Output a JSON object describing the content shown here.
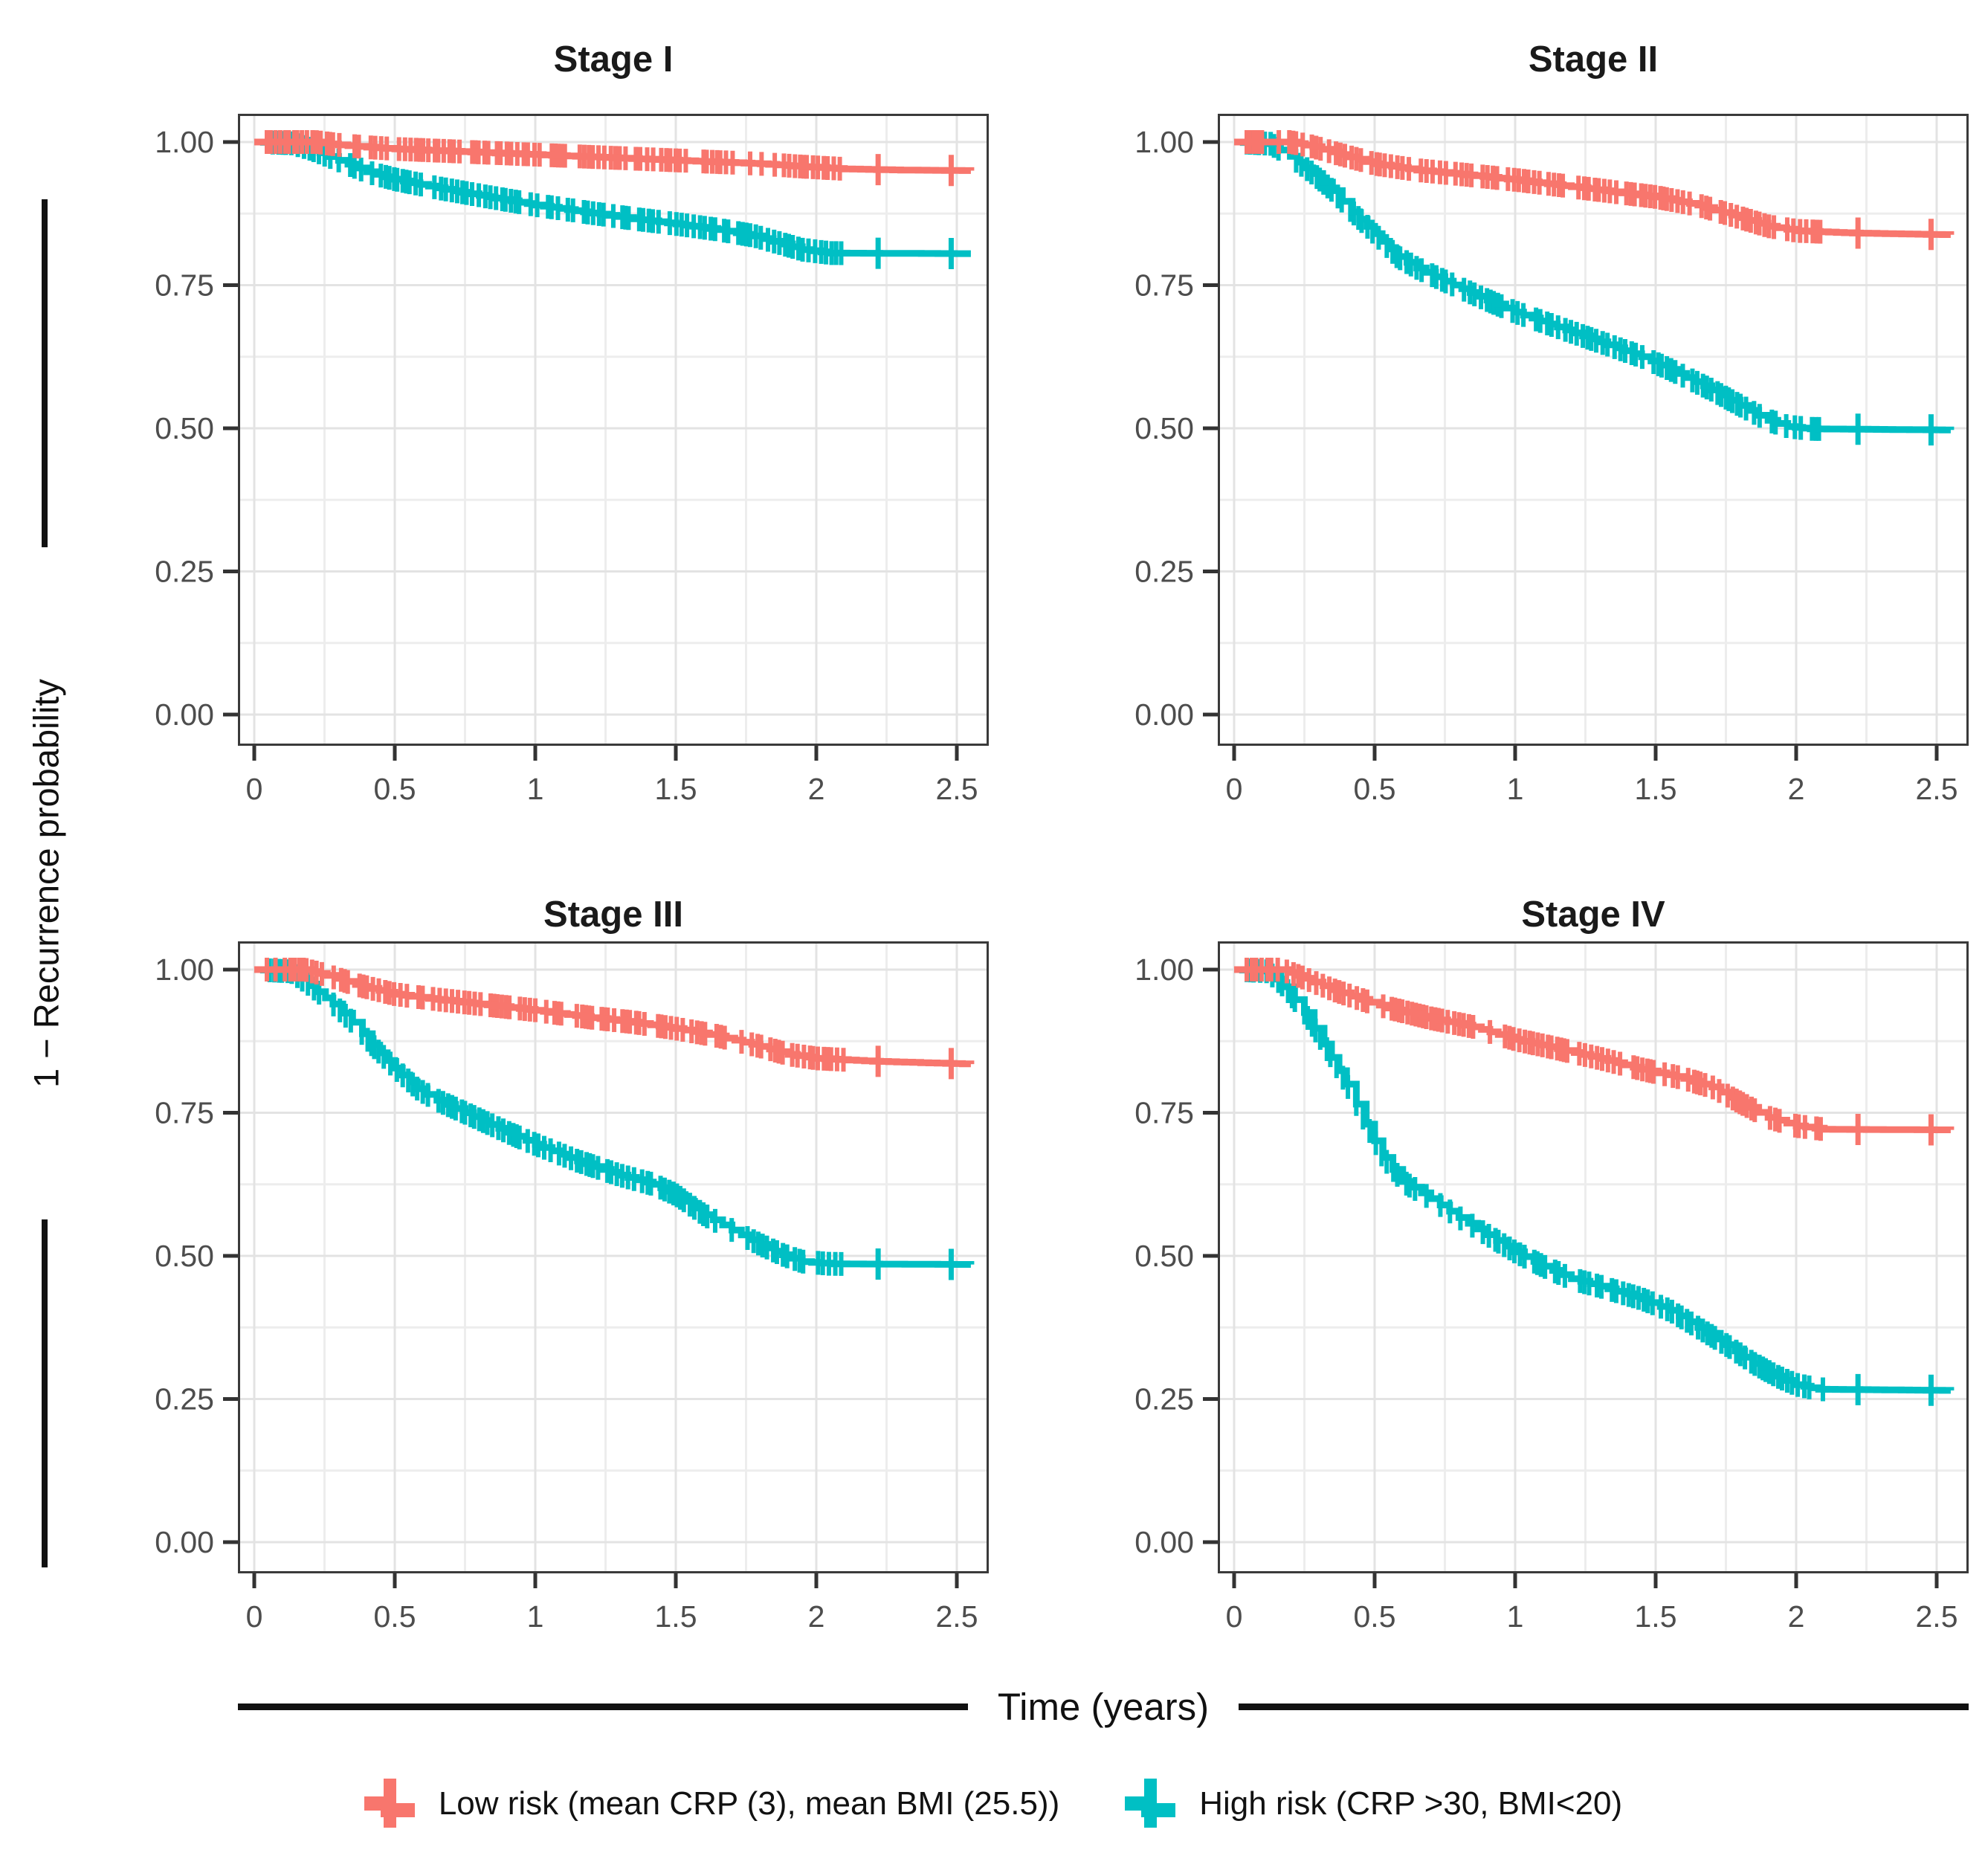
{
  "figure": {
    "colors": {
      "low_risk": "#F8766D",
      "high_risk": "#00BFC4",
      "grid_major": "#E3E3E3",
      "grid_minor": "#EDEDED",
      "panel_border": "#3A3A3A",
      "tick_mark": "#333333",
      "tick_label": "#4D4D4D",
      "axis_rule": "#111111"
    },
    "legend": {
      "items": [
        {
          "label": "Low risk (mean CRP (3), mean BMI (25.5))",
          "color_key": "low_risk",
          "series": "low"
        },
        {
          "label": "High risk (CRP >30, BMI<20)",
          "color_key": "high_risk",
          "series": "high"
        }
      ]
    }
  },
  "chart_data": {
    "type": "line",
    "subtype": "kaplan-meier-step-curves",
    "title": "",
    "xlabel": "Time (years)",
    "ylabel": "1 − Recurrence probability",
    "grid": "major+minor",
    "legend_position": "bottom",
    "xlim": [
      -0.06,
      2.61
    ],
    "ylim": [
      -0.055,
      1.05
    ],
    "x_ticks": [
      0,
      0.5,
      1,
      1.5,
      2,
      2.5
    ],
    "x_tick_labels": [
      "0",
      "0.5",
      "1",
      "1.5",
      "2",
      "2.5"
    ],
    "y_ticks": [
      1.0,
      0.75,
      0.5,
      0.25,
      0.0
    ],
    "y_tick_labels": [
      "1.00",
      "0.75",
      "0.50",
      "0.25",
      "0.00"
    ],
    "censoring": {
      "note": "dense + tick marks along curves denote censored observations",
      "dense_from": 0.045,
      "dense_until": 2.1,
      "late_marks": [
        2.22,
        2.48
      ]
    },
    "panels": [
      {
        "title": "Stage I",
        "series": {
          "low": [
            [
              0,
              1.0
            ],
            [
              0.22,
              1.0
            ],
            [
              0.3,
              0.995
            ],
            [
              0.4,
              0.991
            ],
            [
              0.5,
              0.988
            ],
            [
              0.65,
              0.985
            ],
            [
              0.8,
              0.982
            ],
            [
              1.0,
              0.978
            ],
            [
              1.2,
              0.974
            ],
            [
              1.4,
              0.97
            ],
            [
              1.6,
              0.966
            ],
            [
              1.8,
              0.962
            ],
            [
              1.95,
              0.957
            ],
            [
              2.1,
              0.953
            ],
            [
              2.3,
              0.951
            ],
            [
              2.55,
              0.95
            ]
          ],
          "high": [
            [
              0,
              1.0
            ],
            [
              0.13,
              0.998
            ],
            [
              0.2,
              0.988
            ],
            [
              0.3,
              0.968
            ],
            [
              0.4,
              0.948
            ],
            [
              0.5,
              0.935
            ],
            [
              0.65,
              0.92
            ],
            [
              0.8,
              0.907
            ],
            [
              1.0,
              0.89
            ],
            [
              1.2,
              0.876
            ],
            [
              1.35,
              0.866
            ],
            [
              1.5,
              0.857
            ],
            [
              1.65,
              0.847
            ],
            [
              1.78,
              0.836
            ],
            [
              1.88,
              0.822
            ],
            [
              1.95,
              0.812
            ],
            [
              2.05,
              0.806
            ],
            [
              2.55,
              0.805
            ]
          ]
        }
      },
      {
        "title": "Stage II",
        "series": {
          "low": [
            [
              0,
              1.0
            ],
            [
              0.2,
              1.0
            ],
            [
              0.28,
              0.992
            ],
            [
              0.38,
              0.978
            ],
            [
              0.5,
              0.962
            ],
            [
              0.65,
              0.951
            ],
            [
              0.8,
              0.944
            ],
            [
              1.0,
              0.934
            ],
            [
              1.2,
              0.922
            ],
            [
              1.35,
              0.913
            ],
            [
              1.5,
              0.904
            ],
            [
              1.65,
              0.89
            ],
            [
              1.8,
              0.868
            ],
            [
              1.9,
              0.853
            ],
            [
              2.0,
              0.845
            ],
            [
              2.2,
              0.841
            ],
            [
              2.55,
              0.838
            ]
          ],
          "high": [
            [
              0,
              1.0
            ],
            [
              0.13,
              0.997
            ],
            [
              0.2,
              0.975
            ],
            [
              0.28,
              0.945
            ],
            [
              0.35,
              0.915
            ],
            [
              0.42,
              0.878
            ],
            [
              0.5,
              0.84
            ],
            [
              0.58,
              0.8
            ],
            [
              0.65,
              0.78
            ],
            [
              0.75,
              0.757
            ],
            [
              0.9,
              0.724
            ],
            [
              1.0,
              0.703
            ],
            [
              1.15,
              0.677
            ],
            [
              1.3,
              0.651
            ],
            [
              1.45,
              0.625
            ],
            [
              1.55,
              0.603
            ],
            [
              1.7,
              0.567
            ],
            [
              1.8,
              0.54
            ],
            [
              1.9,
              0.514
            ],
            [
              1.97,
              0.503
            ],
            [
              2.05,
              0.499
            ],
            [
              2.55,
              0.497
            ]
          ]
        }
      },
      {
        "title": "Stage III",
        "series": {
          "low": [
            [
              0,
              1.0
            ],
            [
              0.18,
              1.0
            ],
            [
              0.26,
              0.99
            ],
            [
              0.36,
              0.974
            ],
            [
              0.5,
              0.957
            ],
            [
              0.65,
              0.948
            ],
            [
              0.8,
              0.94
            ],
            [
              1.0,
              0.929
            ],
            [
              1.2,
              0.916
            ],
            [
              1.35,
              0.908
            ],
            [
              1.5,
              0.897
            ],
            [
              1.65,
              0.884
            ],
            [
              1.8,
              0.866
            ],
            [
              1.9,
              0.852
            ],
            [
              2.0,
              0.845
            ],
            [
              2.2,
              0.84
            ],
            [
              2.4,
              0.837
            ],
            [
              2.55,
              0.835
            ]
          ],
          "high": [
            [
              0,
              1.0
            ],
            [
              0.13,
              0.997
            ],
            [
              0.2,
              0.972
            ],
            [
              0.28,
              0.94
            ],
            [
              0.35,
              0.908
            ],
            [
              0.42,
              0.868
            ],
            [
              0.5,
              0.828
            ],
            [
              0.58,
              0.792
            ],
            [
              0.65,
              0.772
            ],
            [
              0.75,
              0.75
            ],
            [
              0.9,
              0.716
            ],
            [
              1.0,
              0.695
            ],
            [
              1.15,
              0.666
            ],
            [
              1.3,
              0.641
            ],
            [
              1.42,
              0.625
            ],
            [
              1.5,
              0.607
            ],
            [
              1.6,
              0.572
            ],
            [
              1.7,
              0.545
            ],
            [
              1.8,
              0.52
            ],
            [
              1.88,
              0.502
            ],
            [
              1.95,
              0.49
            ],
            [
              2.05,
              0.486
            ],
            [
              2.55,
              0.485
            ]
          ]
        }
      },
      {
        "title": "Stage IV",
        "series": {
          "low": [
            [
              0,
              1.0
            ],
            [
              0.17,
              1.0
            ],
            [
              0.25,
              0.985
            ],
            [
              0.35,
              0.965
            ],
            [
              0.45,
              0.948
            ],
            [
              0.55,
              0.933
            ],
            [
              0.7,
              0.915
            ],
            [
              0.85,
              0.9
            ],
            [
              1.0,
              0.878
            ],
            [
              1.15,
              0.862
            ],
            [
              1.3,
              0.845
            ],
            [
              1.45,
              0.826
            ],
            [
              1.6,
              0.81
            ],
            [
              1.7,
              0.795
            ],
            [
              1.8,
              0.768
            ],
            [
              1.9,
              0.742
            ],
            [
              2.0,
              0.727
            ],
            [
              2.1,
              0.721
            ],
            [
              2.55,
              0.72
            ]
          ],
          "high": [
            [
              0,
              1.0
            ],
            [
              0.12,
              0.997
            ],
            [
              0.18,
              0.97
            ],
            [
              0.25,
              0.925
            ],
            [
              0.32,
              0.87
            ],
            [
              0.4,
              0.8
            ],
            [
              0.47,
              0.73
            ],
            [
              0.53,
              0.672
            ],
            [
              0.6,
              0.63
            ],
            [
              0.7,
              0.6
            ],
            [
              0.8,
              0.567
            ],
            [
              0.9,
              0.537
            ],
            [
              1.0,
              0.507
            ],
            [
              1.1,
              0.482
            ],
            [
              1.2,
              0.46
            ],
            [
              1.3,
              0.447
            ],
            [
              1.45,
              0.425
            ],
            [
              1.55,
              0.405
            ],
            [
              1.65,
              0.375
            ],
            [
              1.75,
              0.345
            ],
            [
              1.85,
              0.312
            ],
            [
              1.93,
              0.29
            ],
            [
              2.0,
              0.275
            ],
            [
              2.08,
              0.267
            ],
            [
              2.55,
              0.265
            ]
          ]
        }
      }
    ]
  }
}
